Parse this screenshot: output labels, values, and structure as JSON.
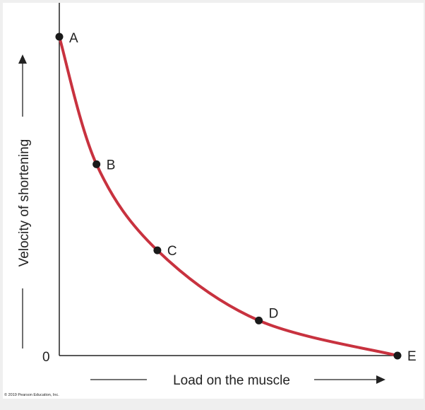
{
  "chart_data": {
    "type": "line",
    "xlabel": "Load on the muscle",
    "ylabel": "Velocity of shortening",
    "origin_label": "0",
    "xlim": [
      0,
      1
    ],
    "ylim": [
      0,
      1
    ],
    "grid": false,
    "series": [
      {
        "color": "#c8323f",
        "points": [
          {
            "label": "A",
            "x": 0.0,
            "y": 1.0
          },
          {
            "label": "B",
            "x": 0.11,
            "y": 0.6
          },
          {
            "label": "C",
            "x": 0.29,
            "y": 0.33
          },
          {
            "label": "D",
            "x": 0.59,
            "y": 0.11
          },
          {
            "label": "E",
            "x": 1.0,
            "y": 0.0
          }
        ]
      }
    ]
  },
  "copyright": "© 2019 Pearson Education, Inc."
}
